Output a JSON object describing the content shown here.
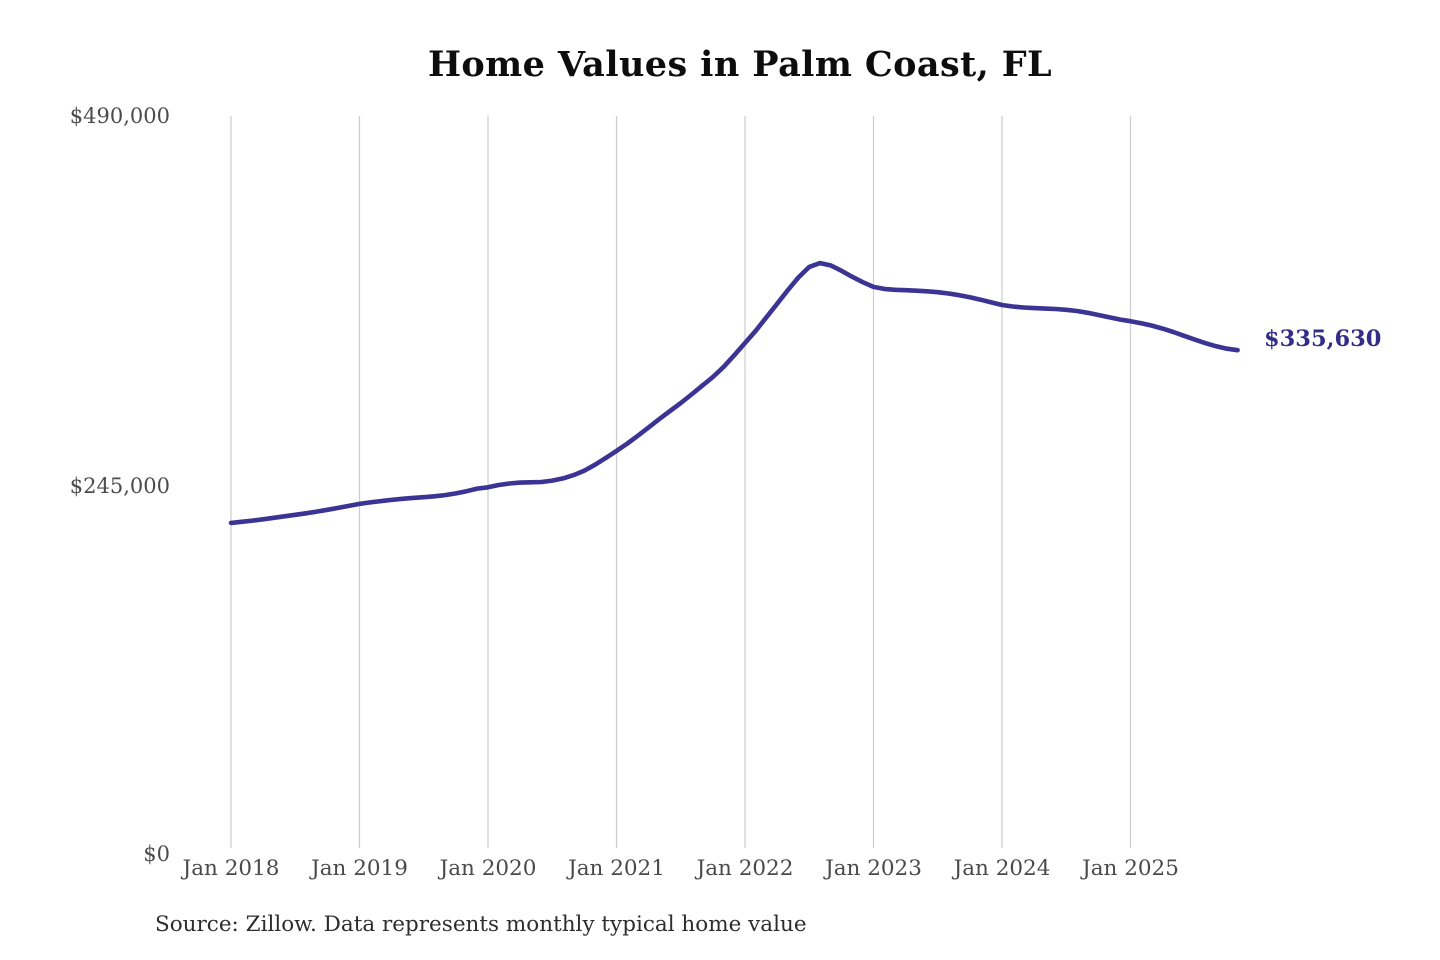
{
  "title": "Home Values in Palm Coast, FL",
  "source_note": "Source: Zillow. Data represents monthly typical home value",
  "colors": {
    "line": "#3b3494",
    "grid": "#cdcdcd",
    "title_text": "#0d0d0d",
    "axis_text": "#4a4a4a",
    "end_label_text": "#332d88",
    "source_text": "#2d2d2d",
    "background": "#ffffff"
  },
  "chart_data": {
    "type": "line",
    "title": "Home Values in Palm Coast, FL",
    "xlabel": "",
    "ylabel": "",
    "series_name": "Monthly typical home value",
    "x_tick_labels": [
      "Jan 2018",
      "Jan 2019",
      "Jan 2020",
      "Jan 2021",
      "Jan 2022",
      "Jan 2023",
      "Jan 2024",
      "Jan 2025"
    ],
    "y_tick_labels": [
      "$0",
      "$245,000",
      "$490,000"
    ],
    "ylim": [
      0,
      490000
    ],
    "grid": "vertical-only",
    "legend": "none",
    "last_point": {
      "date": "2025-11",
      "value": 335630,
      "label": "$335,630"
    },
    "dates": [
      "2018-01",
      "2018-02",
      "2018-03",
      "2018-04",
      "2018-05",
      "2018-06",
      "2018-07",
      "2018-08",
      "2018-09",
      "2018-10",
      "2018-11",
      "2018-12",
      "2019-01",
      "2019-02",
      "2019-03",
      "2019-04",
      "2019-05",
      "2019-06",
      "2019-07",
      "2019-08",
      "2019-09",
      "2019-10",
      "2019-11",
      "2019-12",
      "2020-01",
      "2020-02",
      "2020-03",
      "2020-04",
      "2020-05",
      "2020-06",
      "2020-07",
      "2020-08",
      "2020-09",
      "2020-10",
      "2020-11",
      "2020-12",
      "2021-01",
      "2021-02",
      "2021-03",
      "2021-04",
      "2021-05",
      "2021-06",
      "2021-07",
      "2021-08",
      "2021-09",
      "2021-10",
      "2021-11",
      "2021-12",
      "2022-01",
      "2022-02",
      "2022-03",
      "2022-04",
      "2022-05",
      "2022-06",
      "2022-07",
      "2022-08",
      "2022-09",
      "2022-10",
      "2022-11",
      "2022-12",
      "2023-01",
      "2023-02",
      "2023-03",
      "2023-04",
      "2023-05",
      "2023-06",
      "2023-07",
      "2023-08",
      "2023-09",
      "2023-10",
      "2023-11",
      "2023-12",
      "2024-01",
      "2024-02",
      "2024-03",
      "2024-04",
      "2024-05",
      "2024-06",
      "2024-07",
      "2024-08",
      "2024-09",
      "2024-10",
      "2024-11",
      "2024-12",
      "2025-01",
      "2025-02",
      "2025-03",
      "2025-04",
      "2025-05",
      "2025-06",
      "2025-07",
      "2025-08",
      "2025-09",
      "2025-10",
      "2025-11"
    ],
    "values": [
      220800,
      221500,
      222300,
      223200,
      224200,
      225200,
      226200,
      227200,
      228300,
      229500,
      230800,
      232100,
      233400,
      234400,
      235300,
      236100,
      236800,
      237400,
      237900,
      238500,
      239300,
      240400,
      241900,
      243600,
      244500,
      246000,
      247000,
      247600,
      247800,
      248000,
      248900,
      250400,
      252600,
      255600,
      259500,
      264000,
      268700,
      273500,
      278800,
      284300,
      289800,
      295200,
      300500,
      306200,
      312000,
      317800,
      324500,
      332300,
      340400,
      348500,
      357500,
      366500,
      375500,
      384000,
      391000,
      393500,
      392000,
      388500,
      384500,
      380800,
      377700,
      376400,
      375800,
      375500,
      375200,
      374800,
      374200,
      373300,
      372200,
      370800,
      369200,
      367400,
      365700,
      364700,
      364000,
      363600,
      363300,
      363000,
      362500,
      361700,
      360500,
      359000,
      357500,
      356000,
      354900,
      353600,
      352000,
      350000,
      347700,
      345200,
      342700,
      340300,
      338200,
      336600,
      335630
    ]
  }
}
